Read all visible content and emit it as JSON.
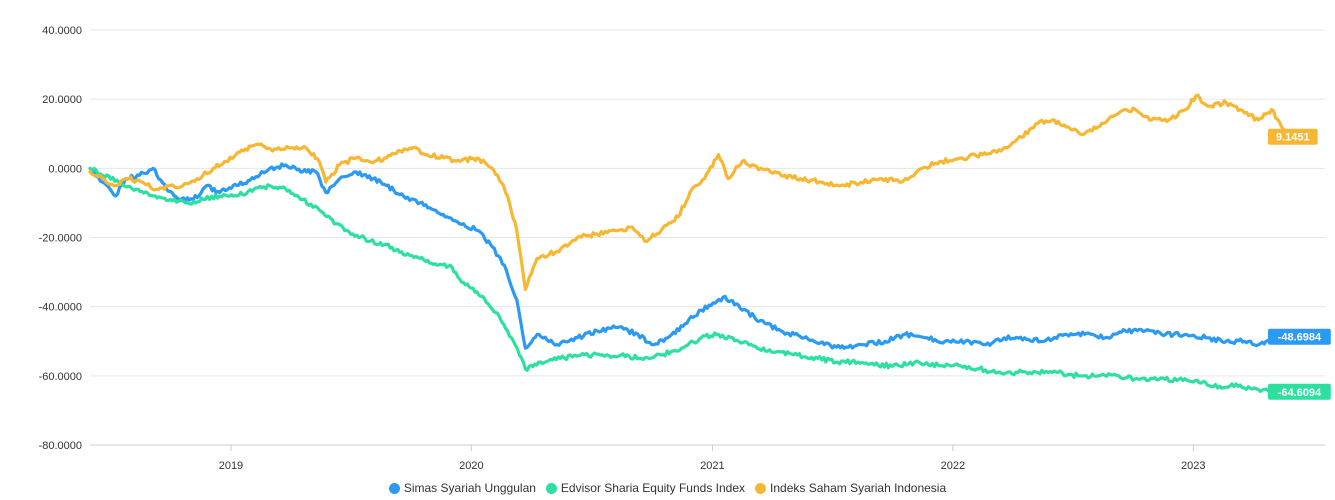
{
  "chart_data": {
    "type": "line",
    "title": "",
    "xlabel": "",
    "ylabel": "",
    "ylim": [
      -80,
      40
    ],
    "xlim": [
      "2018-06-01",
      "2023-07-20"
    ],
    "y_ticks": [
      "40.0000",
      "20.0000",
      "0.0000",
      "-20.0000",
      "-40.0000",
      "-60.0000",
      "-80.0000"
    ],
    "x_ticks": [
      "2019",
      "2020",
      "2021",
      "2022",
      "2023"
    ],
    "grid": "horizontal",
    "legend": "bottom-center",
    "series": [
      {
        "name": "Simas Syariah Unggulan",
        "color": "#2b9af3",
        "end_label": "-48.6984",
        "points": [
          [
            "2018-06-01",
            0
          ],
          [
            "2018-06-20",
            -4
          ],
          [
            "2018-07-10",
            -8
          ],
          [
            "2018-07-25",
            -3
          ],
          [
            "2018-08-15",
            -2
          ],
          [
            "2018-09-05",
            0
          ],
          [
            "2018-09-25",
            -6
          ],
          [
            "2018-10-15",
            -9
          ],
          [
            "2018-11-05",
            -9
          ],
          [
            "2018-11-25",
            -5
          ],
          [
            "2018-12-15",
            -7
          ],
          [
            "2019-01-10",
            -5
          ],
          [
            "2019-02-05",
            -3
          ],
          [
            "2019-03-01",
            0
          ],
          [
            "2019-03-25",
            1
          ],
          [
            "2019-04-20",
            -1
          ],
          [
            "2019-05-10",
            -1
          ],
          [
            "2019-05-25",
            -7
          ],
          [
            "2019-06-15",
            -3
          ],
          [
            "2019-07-10",
            -1
          ],
          [
            "2019-08-05",
            -3
          ],
          [
            "2019-08-25",
            -5
          ],
          [
            "2019-09-20",
            -8
          ],
          [
            "2019-10-15",
            -10
          ],
          [
            "2019-11-05",
            -12
          ],
          [
            "2019-11-25",
            -14
          ],
          [
            "2019-12-20",
            -16
          ],
          [
            "2020-01-10",
            -18
          ],
          [
            "2020-01-30",
            -22
          ],
          [
            "2020-02-20",
            -28
          ],
          [
            "2020-03-10",
            -38
          ],
          [
            "2020-03-23",
            -52
          ],
          [
            "2020-04-10",
            -48
          ],
          [
            "2020-05-10",
            -51
          ],
          [
            "2020-06-10",
            -49
          ],
          [
            "2020-07-10",
            -47
          ],
          [
            "2020-08-10",
            -46
          ],
          [
            "2020-09-10",
            -48
          ],
          [
            "2020-10-01",
            -51
          ],
          [
            "2020-10-25",
            -49
          ],
          [
            "2020-11-20",
            -45
          ],
          [
            "2020-12-15",
            -41
          ],
          [
            "2021-01-05",
            -39
          ],
          [
            "2021-01-20",
            -37
          ],
          [
            "2021-02-15",
            -41
          ],
          [
            "2021-03-15",
            -44
          ],
          [
            "2021-04-15",
            -47
          ],
          [
            "2021-05-20",
            -49
          ],
          [
            "2021-06-20",
            -51
          ],
          [
            "2021-07-20",
            -52
          ],
          [
            "2021-08-20",
            -51
          ],
          [
            "2021-09-20",
            -50
          ],
          [
            "2021-10-20",
            -48
          ],
          [
            "2021-11-20",
            -49
          ],
          [
            "2021-12-20",
            -50
          ],
          [
            "2022-01-20",
            -50
          ],
          [
            "2022-02-20",
            -51
          ],
          [
            "2022-03-20",
            -49
          ],
          [
            "2022-04-20",
            -49
          ],
          [
            "2022-05-20",
            -50
          ],
          [
            "2022-06-20",
            -48
          ],
          [
            "2022-07-20",
            -48
          ],
          [
            "2022-08-20",
            -49
          ],
          [
            "2022-09-20",
            -47
          ],
          [
            "2022-10-20",
            -47
          ],
          [
            "2022-11-20",
            -48
          ],
          [
            "2022-12-20",
            -48
          ],
          [
            "2023-01-20",
            -49
          ],
          [
            "2023-02-20",
            -50
          ],
          [
            "2023-03-20",
            -50
          ],
          [
            "2023-04-10",
            -51
          ],
          [
            "2023-05-15",
            -48.6984
          ]
        ]
      },
      {
        "name": "Edvisor Sharia Equity Funds Index",
        "color": "#2ee0a0",
        "end_label": "-64.6094",
        "points": [
          [
            "2018-06-01",
            0
          ],
          [
            "2018-06-20",
            -2
          ],
          [
            "2018-07-15",
            -4
          ],
          [
            "2018-08-10",
            -6
          ],
          [
            "2018-09-05",
            -8
          ],
          [
            "2018-10-01",
            -9
          ],
          [
            "2018-10-25",
            -10
          ],
          [
            "2018-11-20",
            -9
          ],
          [
            "2018-12-15",
            -8
          ],
          [
            "2019-01-10",
            -8
          ],
          [
            "2019-02-05",
            -6
          ],
          [
            "2019-03-01",
            -5
          ],
          [
            "2019-03-25",
            -6
          ],
          [
            "2019-04-20",
            -9
          ],
          [
            "2019-05-15",
            -12
          ],
          [
            "2019-06-10",
            -16
          ],
          [
            "2019-07-05",
            -19
          ],
          [
            "2019-08-01",
            -21
          ],
          [
            "2019-08-25",
            -22
          ],
          [
            "2019-09-20",
            -25
          ],
          [
            "2019-10-15",
            -26
          ],
          [
            "2019-11-10",
            -28
          ],
          [
            "2019-11-30",
            -28
          ],
          [
            "2019-12-20",
            -33
          ],
          [
            "2020-01-15",
            -37
          ],
          [
            "2020-02-10",
            -42
          ],
          [
            "2020-03-05",
            -50
          ],
          [
            "2020-03-23",
            -58
          ],
          [
            "2020-04-15",
            -56
          ],
          [
            "2020-05-15",
            -55
          ],
          [
            "2020-06-15",
            -54
          ],
          [
            "2020-07-15",
            -54
          ],
          [
            "2020-08-15",
            -54
          ],
          [
            "2020-09-15",
            -55
          ],
          [
            "2020-10-15",
            -54
          ],
          [
            "2020-11-15",
            -52
          ],
          [
            "2020-12-15",
            -49
          ],
          [
            "2021-01-10",
            -48
          ],
          [
            "2021-02-10",
            -50
          ],
          [
            "2021-03-10",
            -52
          ],
          [
            "2021-04-10",
            -53
          ],
          [
            "2021-05-10",
            -54
          ],
          [
            "2021-06-10",
            -55
          ],
          [
            "2021-07-10",
            -56
          ],
          [
            "2021-08-10",
            -56
          ],
          [
            "2021-09-10",
            -57
          ],
          [
            "2021-10-10",
            -57
          ],
          [
            "2021-11-10",
            -56
          ],
          [
            "2021-12-10",
            -57
          ],
          [
            "2022-01-10",
            -57
          ],
          [
            "2022-02-10",
            -58
          ],
          [
            "2022-03-10",
            -59
          ],
          [
            "2022-04-10",
            -59
          ],
          [
            "2022-05-10",
            -59
          ],
          [
            "2022-06-10",
            -59
          ],
          [
            "2022-07-10",
            -60
          ],
          [
            "2022-08-10",
            -60
          ],
          [
            "2022-09-10",
            -60
          ],
          [
            "2022-10-10",
            -61
          ],
          [
            "2022-11-10",
            -61
          ],
          [
            "2022-12-10",
            -61
          ],
          [
            "2023-01-10",
            -62
          ],
          [
            "2023-02-10",
            -63
          ],
          [
            "2023-03-10",
            -63
          ],
          [
            "2023-04-10",
            -64
          ],
          [
            "2023-05-15",
            -64.6094
          ]
        ]
      },
      {
        "name": "Indeks Saham Syariah Indonesia",
        "color": "#f7b733",
        "end_label": "9.1451",
        "points": [
          [
            "2018-06-01",
            -1
          ],
          [
            "2018-06-20",
            -3
          ],
          [
            "2018-07-10",
            -5
          ],
          [
            "2018-07-30",
            -3
          ],
          [
            "2018-08-20",
            -4
          ],
          [
            "2018-09-10",
            -6
          ],
          [
            "2018-10-01",
            -5
          ],
          [
            "2018-10-20",
            -5
          ],
          [
            "2018-11-10",
            -3
          ],
          [
            "2018-12-05",
            0
          ],
          [
            "2018-12-25",
            2
          ],
          [
            "2019-01-20",
            5
          ],
          [
            "2019-02-10",
            7
          ],
          [
            "2019-03-05",
            5
          ],
          [
            "2019-03-30",
            6
          ],
          [
            "2019-04-25",
            6
          ],
          [
            "2019-05-15",
            2
          ],
          [
            "2019-05-25",
            -4
          ],
          [
            "2019-06-15",
            1
          ],
          [
            "2019-07-10",
            3
          ],
          [
            "2019-07-30",
            2
          ],
          [
            "2019-08-25",
            3
          ],
          [
            "2019-09-15",
            5
          ],
          [
            "2019-10-05",
            6
          ],
          [
            "2019-10-25",
            4
          ],
          [
            "2019-11-20",
            3
          ],
          [
            "2019-12-15",
            2
          ],
          [
            "2020-01-10",
            3
          ],
          [
            "2020-01-25",
            1
          ],
          [
            "2020-02-10",
            -2
          ],
          [
            "2020-02-25",
            -8
          ],
          [
            "2020-03-10",
            -18
          ],
          [
            "2020-03-23",
            -35
          ],
          [
            "2020-04-10",
            -26
          ],
          [
            "2020-05-10",
            -24
          ],
          [
            "2020-06-10",
            -20
          ],
          [
            "2020-07-10",
            -19
          ],
          [
            "2020-08-10",
            -18
          ],
          [
            "2020-09-01",
            -17
          ],
          [
            "2020-09-20",
            -21
          ],
          [
            "2020-10-15",
            -18
          ],
          [
            "2020-11-10",
            -14
          ],
          [
            "2020-12-01",
            -6
          ],
          [
            "2020-12-20",
            -3
          ],
          [
            "2021-01-10",
            4
          ],
          [
            "2021-01-25",
            -3
          ],
          [
            "2021-02-15",
            2
          ],
          [
            "2021-03-15",
            0
          ],
          [
            "2021-04-15",
            -2
          ],
          [
            "2021-05-15",
            -3
          ],
          [
            "2021-06-15",
            -4
          ],
          [
            "2021-07-15",
            -5
          ],
          [
            "2021-08-15",
            -4
          ],
          [
            "2021-09-15",
            -3
          ],
          [
            "2021-10-15",
            -4
          ],
          [
            "2021-11-15",
            0
          ],
          [
            "2021-12-15",
            2
          ],
          [
            "2022-01-15",
            3
          ],
          [
            "2022-02-15",
            4
          ],
          [
            "2022-03-15",
            5
          ],
          [
            "2022-04-15",
            9
          ],
          [
            "2022-05-10",
            13
          ],
          [
            "2022-06-01",
            14
          ],
          [
            "2022-06-25",
            12
          ],
          [
            "2022-07-20",
            10
          ],
          [
            "2022-08-15",
            13
          ],
          [
            "2022-09-10",
            16
          ],
          [
            "2022-10-05",
            17
          ],
          [
            "2022-10-30",
            14
          ],
          [
            "2022-11-25",
            14
          ],
          [
            "2022-12-20",
            17
          ],
          [
            "2023-01-05",
            21
          ],
          [
            "2023-01-25",
            18
          ],
          [
            "2023-02-20",
            19
          ],
          [
            "2023-03-20",
            16
          ],
          [
            "2023-04-10",
            14
          ],
          [
            "2023-04-30",
            17
          ],
          [
            "2023-05-15",
            12
          ],
          [
            "2023-05-25",
            9.1451
          ]
        ]
      }
    ]
  }
}
